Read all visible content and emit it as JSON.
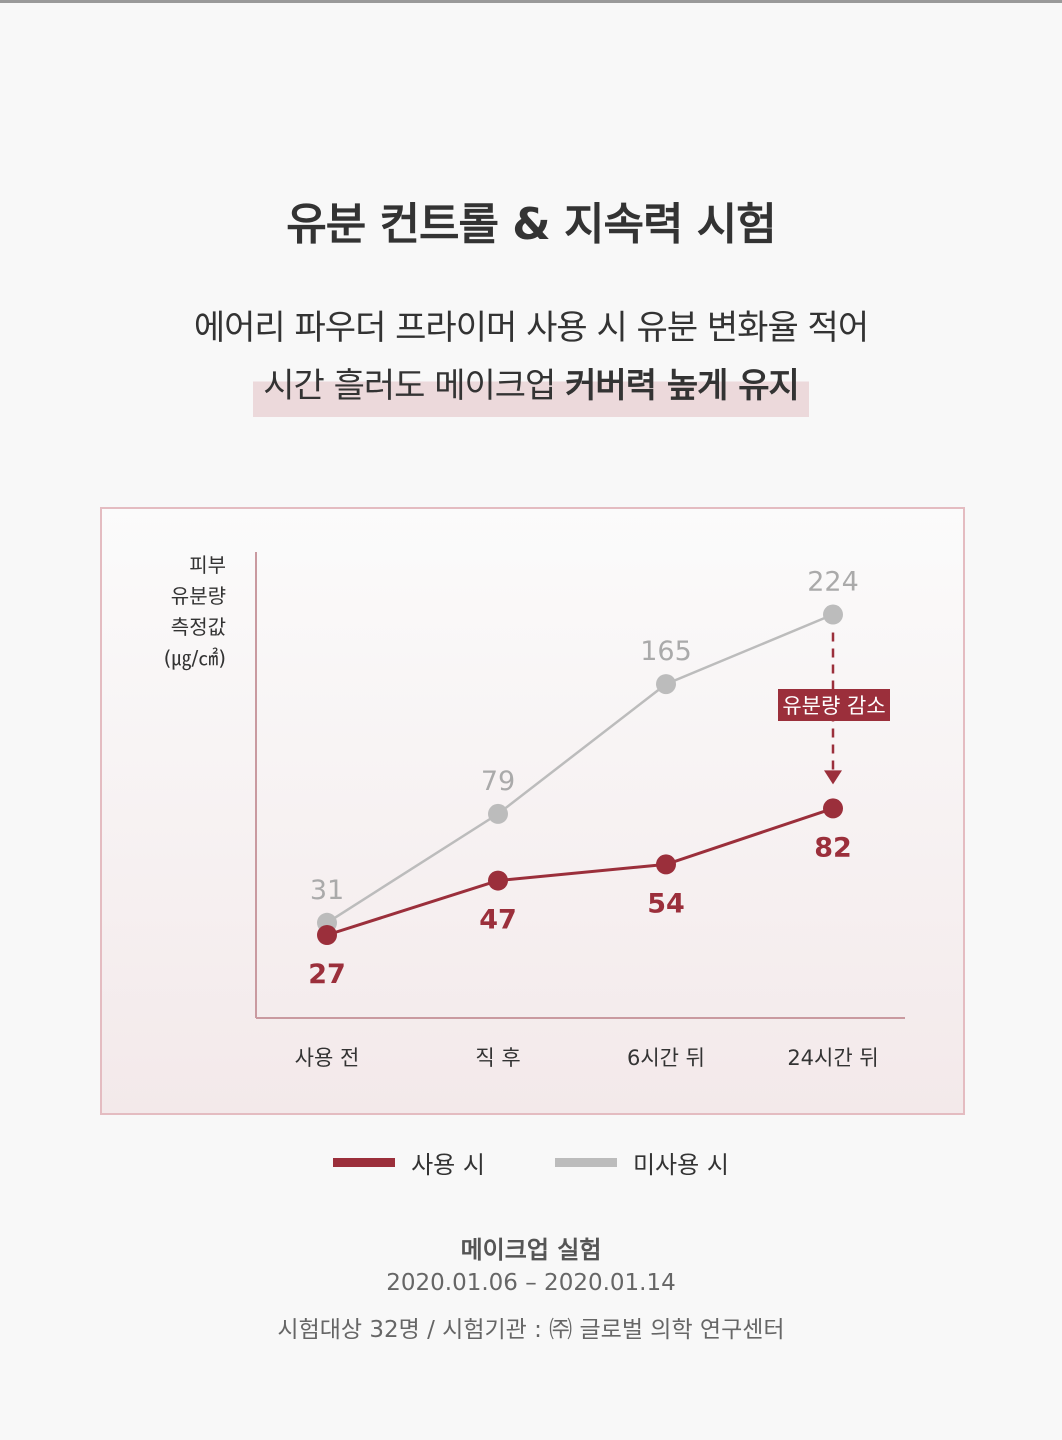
{
  "header": {
    "title": "유분 컨트롤 & 지속력 시험",
    "subtitle_line1": "에어리 파우더 프라이머 사용 시 유분 변화율 적어",
    "subtitle_line2_plain": "시간 흘러도 메이크업 ",
    "subtitle_line2_bold": "커버력 높게 유지"
  },
  "chart_data": {
    "type": "line",
    "ylabel": [
      "피부",
      "유분량",
      "측정값",
      "(㎍/㎠)"
    ],
    "categories": [
      "사용 전",
      "직 후",
      "6시간 뒤",
      "24시간 뒤"
    ],
    "series": [
      {
        "name": "사용 시",
        "values": [
          27,
          47,
          54,
          82
        ],
        "color": "#9b2f3b"
      },
      {
        "name": "미사용 시",
        "values": [
          31,
          79,
          165,
          224
        ],
        "color": "#bcbcbc"
      }
    ],
    "annotation": {
      "label": "유분량 감소",
      "from": 224,
      "to": 82,
      "category": "24시간 뒤",
      "color": "#9b2f3b"
    },
    "grid": false,
    "legend": "bottom"
  },
  "footer": {
    "title": "메이크업 실험",
    "period": "2020.01.06 – 2020.01.14",
    "details": "시험대상 32명 / 시험기관 : ㈜ 글로벌 의학 연구센터"
  }
}
